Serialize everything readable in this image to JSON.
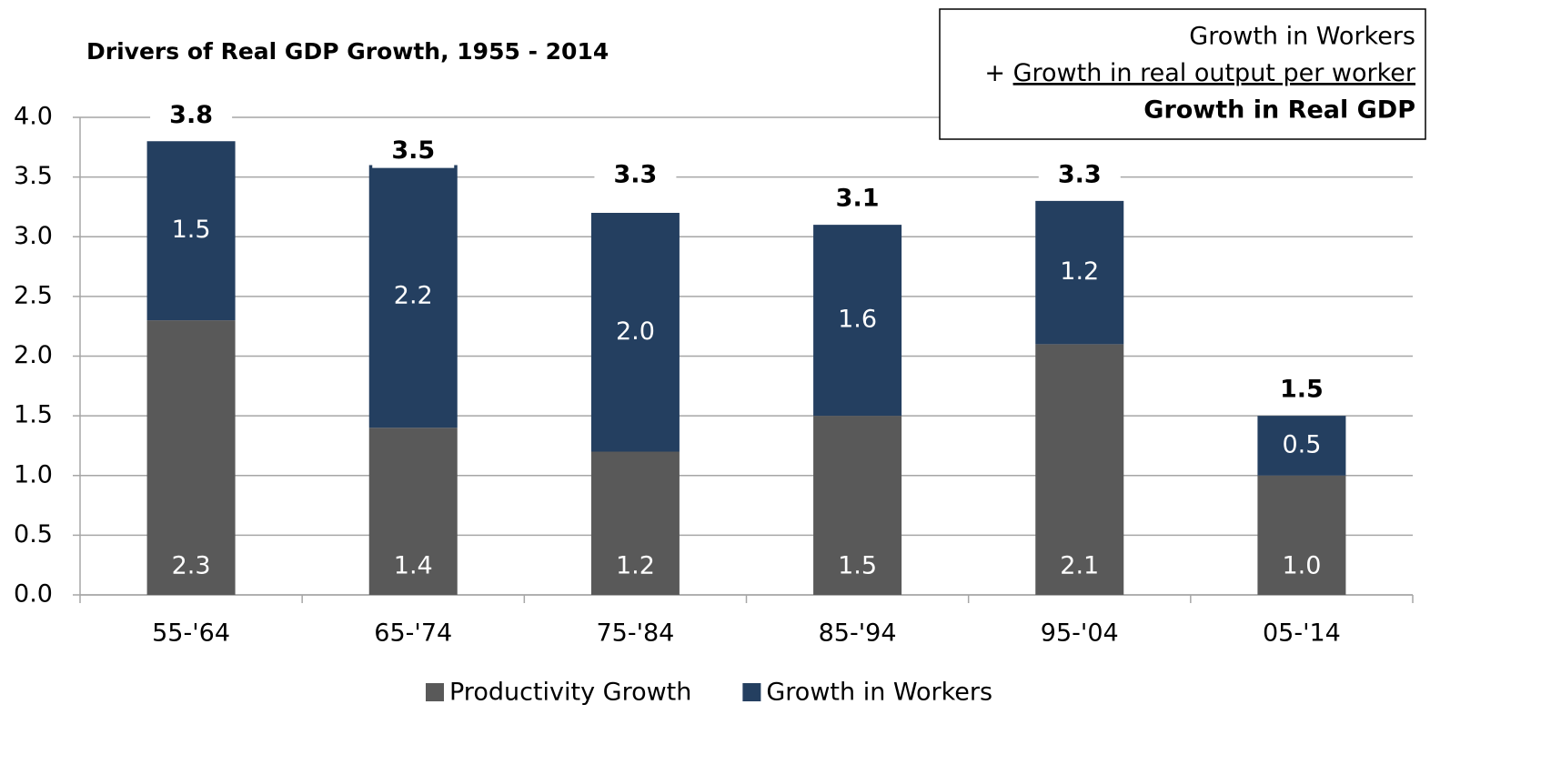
{
  "chart_data": {
    "type": "stacked_bar",
    "title": "Drivers of Real GDP Growth, 1955 - 2014",
    "categories": [
      "55-'64",
      "65-'74",
      "75-'84",
      "85-'94",
      "95-'04",
      "05-'14"
    ],
    "series": [
      {
        "name": "Productivity Growth",
        "color": "#595959",
        "values": [
          2.3,
          1.4,
          1.2,
          1.5,
          2.1,
          1.0
        ],
        "value_labels": [
          "2.3",
          "1.4",
          "1.2",
          "1.5",
          "2.1",
          "1.0"
        ]
      },
      {
        "name": "Growth in Workers",
        "color": "#243f60",
        "values": [
          1.5,
          2.2,
          2.0,
          1.6,
          1.2,
          0.5
        ],
        "value_labels": [
          "1.5",
          "2.2",
          "2.0",
          "1.6",
          "1.2",
          "0.5"
        ]
      }
    ],
    "totals": [
      3.8,
      3.5,
      3.3,
      3.1,
      3.3,
      1.5
    ],
    "ylim": [
      0,
      4
    ],
    "yticks": [
      {
        "value": 0,
        "label": "0.0"
      },
      0.5,
      {
        "value": 1,
        "label": "1.0"
      },
      1.5,
      {
        "value": 2,
        "label": "2.0"
      },
      2.5,
      {
        "value": 3,
        "label": "3.0"
      },
      3.5,
      {
        "value": 4,
        "label": "4.0"
      }
    ],
    "grid": true,
    "legend": "bottom",
    "annotation": {
      "line1": "Growth in Workers",
      "line2_prefix": "+",
      "line2": "Growth in real output per worker",
      "line3": "Growth in Real GDP"
    }
  }
}
